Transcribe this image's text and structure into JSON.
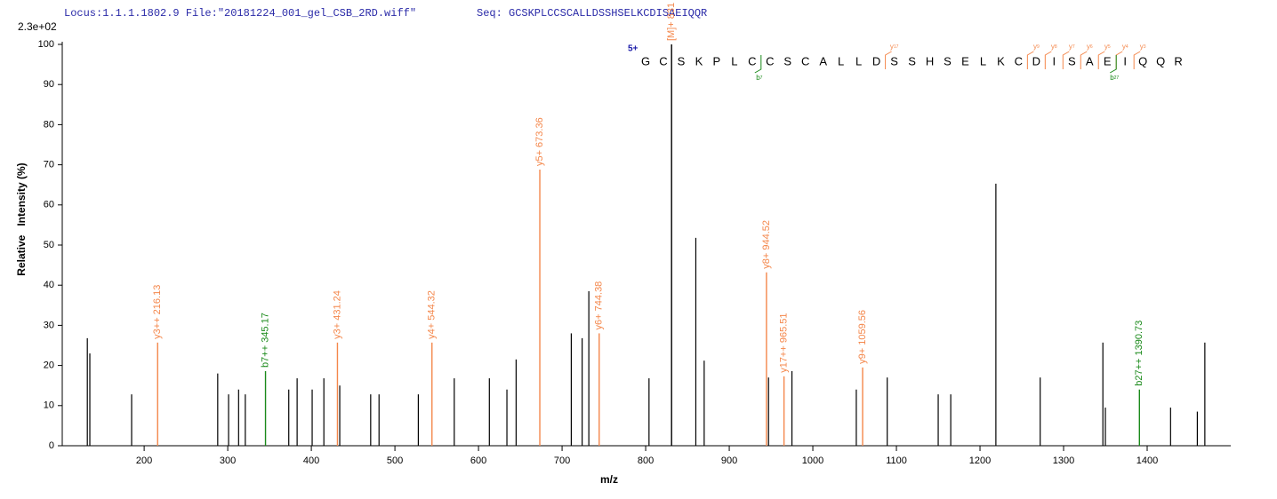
{
  "chart_data": {
    "type": "spectrum",
    "header": {
      "locus_file": "Locus:1.1.1.1802.9 File:\"20181224_001_gel_CSB_2RD.wiff\"",
      "seq": "Seq: GCSKPLCCSCALLDSSHSELKCDISAEIQQR"
    },
    "scale_label": "2.3e+02",
    "y_label": "Relative   Intensity (%)",
    "x_label": "m/z",
    "xlim": [
      102,
      1500
    ],
    "ylim": [
      0,
      100
    ],
    "xticks": [
      200,
      300,
      400,
      500,
      600,
      700,
      800,
      900,
      1000,
      1100,
      1200,
      1300,
      1400
    ],
    "yticks": [
      0,
      10,
      20,
      30,
      40,
      50,
      60,
      70,
      80,
      90,
      100
    ],
    "peak_color": "#000000",
    "peaks": {
      "x": [
        132,
        135,
        185,
        288,
        301,
        313,
        321,
        373,
        383,
        401,
        415,
        434,
        471,
        481,
        528,
        571,
        613,
        634,
        645,
        711,
        724,
        732,
        804,
        860,
        870,
        947,
        975,
        1052,
        1089,
        1150,
        1165,
        1219,
        1272,
        1347,
        1350,
        1428,
        1460,
        1469
      ],
      "values": [
        26.8,
        23,
        12.8,
        18,
        12.8,
        14,
        12.8,
        14,
        16.8,
        14,
        16.8,
        15,
        12.8,
        12.8,
        12.8,
        16.8,
        16.8,
        14,
        21.5,
        28,
        26.8,
        38.5,
        16.8,
        51.8,
        21.2,
        17,
        18.6,
        14,
        17,
        12.8,
        12.8,
        65.3,
        17,
        25.7,
        9.5,
        9.5,
        8.5,
        25.7
      ]
    },
    "annotated_peaks": [
      {
        "label": "y3++ 216.13",
        "x": 216.13,
        "value": 25.7,
        "color": "#f4874b"
      },
      {
        "label": "b7++ 345.17",
        "x": 345.17,
        "value": 18.6,
        "color": "#1a8a1a"
      },
      {
        "label": "y3+ 431.24",
        "x": 431.24,
        "value": 25.7,
        "color": "#f4874b"
      },
      {
        "label": "y4+ 544.32",
        "x": 544.32,
        "value": 25.7,
        "color": "#f4874b"
      },
      {
        "label": "y5+ 673.36",
        "x": 673.36,
        "value": 68.8,
        "color": "#f4874b"
      },
      {
        "label": "y6+ 744.38",
        "x": 744.38,
        "value": 28,
        "color": "#f4874b"
      },
      {
        "label": "[M]+ 831",
        "x": 831,
        "value": 100,
        "color": "#000000",
        "label_color": "#f4874b"
      },
      {
        "label": "y8+ 944.52",
        "x": 944.52,
        "value": 43.2,
        "color": "#f4874b"
      },
      {
        "label": "y17++ 965.51",
        "x": 965.51,
        "value": 17.3,
        "color": "#f4874b"
      },
      {
        "label": "y9+ 1059.56",
        "x": 1059.56,
        "value": 19.5,
        "color": "#f4874b"
      },
      {
        "label": "b27++ 1390.73",
        "x": 1390.73,
        "value": 14,
        "color": "#1a8a1a"
      }
    ],
    "sequence": {
      "charge": "5+",
      "residues": "GCSKPLCCSCALLDSSHSELKCDISAEIQQR",
      "fragments": [
        {
          "ion": "y",
          "number": 17,
          "color": "#f4874b"
        },
        {
          "ion": "y",
          "number": 9,
          "color": "#f4874b"
        },
        {
          "ion": "y",
          "number": 8,
          "color": "#f4874b"
        },
        {
          "ion": "y",
          "number": 7,
          "color": "#f4874b"
        },
        {
          "ion": "y",
          "number": 6,
          "color": "#f4874b"
        },
        {
          "ion": "y",
          "number": 5,
          "color": "#f4874b"
        },
        {
          "ion": "y",
          "number": 4,
          "color": "#f4874b"
        },
        {
          "ion": "y",
          "number": 3,
          "color": "#f4874b"
        },
        {
          "ion": "b",
          "number": 7,
          "color": "#1a8a1a"
        },
        {
          "ion": "b",
          "number": 27,
          "color": "#1a8a1a"
        }
      ]
    }
  }
}
